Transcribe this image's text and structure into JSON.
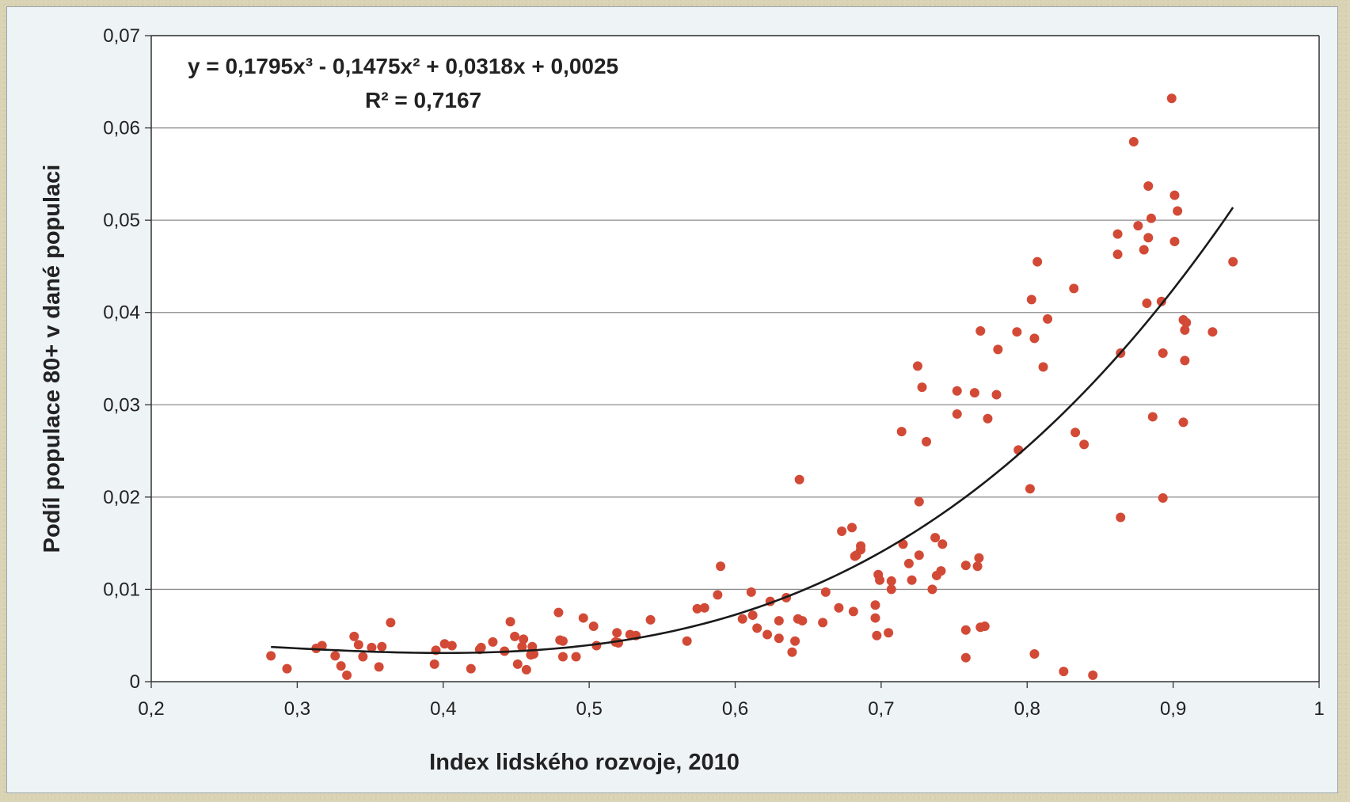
{
  "chart_data": {
    "type": "scatter",
    "title": "",
    "xlabel": "Index lidského rozvoje, 2010",
    "ylabel": "Podíl populace 80+ v dané populaci",
    "xlim": [
      0.2,
      1.0
    ],
    "ylim": [
      0,
      0.07
    ],
    "x_ticks": [
      0.2,
      0.3,
      0.4,
      0.5,
      0.6,
      0.7,
      0.8,
      0.9,
      1.0
    ],
    "x_tick_labels": [
      "0,2",
      "0,3",
      "0,4",
      "0,5",
      "0,6",
      "0,7",
      "0,8",
      "0,9",
      "1"
    ],
    "y_ticks": [
      0,
      0.01,
      0.02,
      0.03,
      0.04,
      0.05,
      0.06,
      0.07
    ],
    "y_tick_labels": [
      "0",
      "0,01",
      "0,02",
      "0,03",
      "0,04",
      "0,05",
      "0,06",
      "0,07"
    ],
    "grid": "horizontal",
    "legend": "none",
    "point_color": "#d24a36",
    "trendline": {
      "type": "polynomial",
      "coefficients": [
        0.1795,
        -0.1475,
        0.0318,
        0.0025
      ],
      "x_range": [
        0.282,
        0.941
      ],
      "color": "#1a1a1a",
      "equation_label": "y = 0,1795x³ - 0,1475x² + 0,0318x + 0,0025",
      "r2_label": "R² = 0,7167"
    },
    "points": [
      [
        0.282,
        0.0028
      ],
      [
        0.293,
        0.0014
      ],
      [
        0.313,
        0.0036
      ],
      [
        0.317,
        0.0039
      ],
      [
        0.326,
        0.0028
      ],
      [
        0.33,
        0.0017
      ],
      [
        0.334,
        0.0007
      ],
      [
        0.339,
        0.0049
      ],
      [
        0.342,
        0.004
      ],
      [
        0.345,
        0.0027
      ],
      [
        0.351,
        0.0037
      ],
      [
        0.356,
        0.0016
      ],
      [
        0.358,
        0.0038
      ],
      [
        0.364,
        0.0064
      ],
      [
        0.394,
        0.0019
      ],
      [
        0.395,
        0.0034
      ],
      [
        0.401,
        0.0041
      ],
      [
        0.406,
        0.0039
      ],
      [
        0.419,
        0.0014
      ],
      [
        0.425,
        0.0035
      ],
      [
        0.426,
        0.0037
      ],
      [
        0.434,
        0.0043
      ],
      [
        0.442,
        0.0033
      ],
      [
        0.446,
        0.0065
      ],
      [
        0.449,
        0.0049
      ],
      [
        0.451,
        0.0019
      ],
      [
        0.454,
        0.0038
      ],
      [
        0.455,
        0.0046
      ],
      [
        0.457,
        0.0013
      ],
      [
        0.46,
        0.0029
      ],
      [
        0.461,
        0.0038
      ],
      [
        0.462,
        0.003
      ],
      [
        0.479,
        0.0075
      ],
      [
        0.48,
        0.0045
      ],
      [
        0.482,
        0.0044
      ],
      [
        0.482,
        0.0027
      ],
      [
        0.491,
        0.0027
      ],
      [
        0.496,
        0.0069
      ],
      [
        0.503,
        0.006
      ],
      [
        0.505,
        0.0039
      ],
      [
        0.518,
        0.0043
      ],
      [
        0.519,
        0.0053
      ],
      [
        0.52,
        0.0042
      ],
      [
        0.528,
        0.0051
      ],
      [
        0.532,
        0.005
      ],
      [
        0.542,
        0.0067
      ],
      [
        0.567,
        0.0044
      ],
      [
        0.574,
        0.0079
      ],
      [
        0.579,
        0.008
      ],
      [
        0.588,
        0.0094
      ],
      [
        0.59,
        0.0125
      ],
      [
        0.605,
        0.0068
      ],
      [
        0.611,
        0.0097
      ],
      [
        0.612,
        0.0072
      ],
      [
        0.615,
        0.0058
      ],
      [
        0.622,
        0.0051
      ],
      [
        0.624,
        0.0087
      ],
      [
        0.63,
        0.0066
      ],
      [
        0.63,
        0.0047
      ],
      [
        0.635,
        0.0091
      ],
      [
        0.639,
        0.0032
      ],
      [
        0.641,
        0.0044
      ],
      [
        0.643,
        0.0068
      ],
      [
        0.644,
        0.0219
      ],
      [
        0.646,
        0.0066
      ],
      [
        0.66,
        0.0064
      ],
      [
        0.662,
        0.0097
      ],
      [
        0.671,
        0.008
      ],
      [
        0.673,
        0.0163
      ],
      [
        0.68,
        0.0167
      ],
      [
        0.681,
        0.0076
      ],
      [
        0.682,
        0.0136
      ],
      [
        0.683,
        0.0137
      ],
      [
        0.686,
        0.0143
      ],
      [
        0.686,
        0.0147
      ],
      [
        0.696,
        0.0083
      ],
      [
        0.696,
        0.0069
      ],
      [
        0.697,
        0.005
      ],
      [
        0.698,
        0.0116
      ],
      [
        0.699,
        0.011
      ],
      [
        0.705,
        0.0053
      ],
      [
        0.707,
        0.01
      ],
      [
        0.707,
        0.0109
      ],
      [
        0.714,
        0.0271
      ],
      [
        0.715,
        0.0149
      ],
      [
        0.719,
        0.0128
      ],
      [
        0.721,
        0.011
      ],
      [
        0.725,
        0.0342
      ],
      [
        0.726,
        0.0195
      ],
      [
        0.726,
        0.0137
      ],
      [
        0.728,
        0.0319
      ],
      [
        0.731,
        0.026
      ],
      [
        0.735,
        0.01
      ],
      [
        0.737,
        0.0156
      ],
      [
        0.738,
        0.0115
      ],
      [
        0.741,
        0.012
      ],
      [
        0.742,
        0.0149
      ],
      [
        0.752,
        0.0315
      ],
      [
        0.752,
        0.029
      ],
      [
        0.758,
        0.0126
      ],
      [
        0.758,
        0.0056
      ],
      [
        0.758,
        0.0026
      ],
      [
        0.764,
        0.0313
      ],
      [
        0.766,
        0.0125
      ],
      [
        0.767,
        0.0134
      ],
      [
        0.768,
        0.0059
      ],
      [
        0.768,
        0.038
      ],
      [
        0.771,
        0.006
      ],
      [
        0.773,
        0.0285
      ],
      [
        0.779,
        0.0311
      ],
      [
        0.78,
        0.036
      ],
      [
        0.793,
        0.0379
      ],
      [
        0.794,
        0.0251
      ],
      [
        0.802,
        0.0209
      ],
      [
        0.803,
        0.0414
      ],
      [
        0.805,
        0.0372
      ],
      [
        0.805,
        0.003
      ],
      [
        0.807,
        0.0455
      ],
      [
        0.811,
        0.0341
      ],
      [
        0.814,
        0.0393
      ],
      [
        0.825,
        0.0011
      ],
      [
        0.832,
        0.0426
      ],
      [
        0.833,
        0.027
      ],
      [
        0.839,
        0.0257
      ],
      [
        0.845,
        0.0007
      ],
      [
        0.862,
        0.0485
      ],
      [
        0.862,
        0.0463
      ],
      [
        0.864,
        0.0356
      ],
      [
        0.864,
        0.0178
      ],
      [
        0.873,
        0.0585
      ],
      [
        0.876,
        0.0494
      ],
      [
        0.88,
        0.0468
      ],
      [
        0.882,
        0.041
      ],
      [
        0.883,
        0.0537
      ],
      [
        0.883,
        0.0481
      ],
      [
        0.885,
        0.0502
      ],
      [
        0.886,
        0.0287
      ],
      [
        0.892,
        0.0412
      ],
      [
        0.893,
        0.0356
      ],
      [
        0.893,
        0.0199
      ],
      [
        0.899,
        0.0632
      ],
      [
        0.901,
        0.0527
      ],
      [
        0.901,
        0.0477
      ],
      [
        0.903,
        0.051
      ],
      [
        0.907,
        0.0392
      ],
      [
        0.907,
        0.0281
      ],
      [
        0.908,
        0.0348
      ],
      [
        0.908,
        0.0381
      ],
      [
        0.909,
        0.0389
      ],
      [
        0.927,
        0.0379
      ],
      [
        0.941,
        0.0455
      ]
    ]
  }
}
